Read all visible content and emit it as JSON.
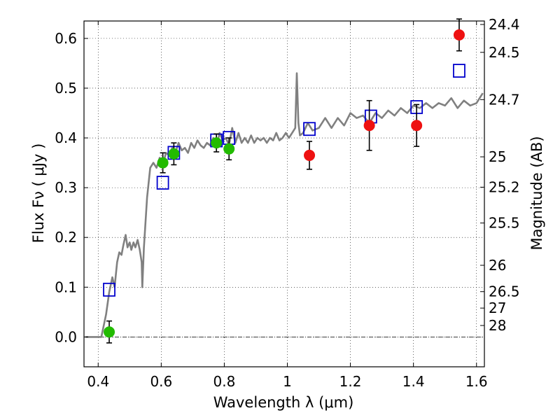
{
  "chart_data": {
    "type": "scatter",
    "xlabel": "Wavelength  λ (μm)",
    "ylabel": "Flux  Fν  ( μJy )",
    "y2label": "Magnitude (AB)",
    "xlim": [
      0.355,
      1.625
    ],
    "ylim": [
      -0.06,
      0.635
    ],
    "xticks": [
      0.4,
      0.6,
      0.8,
      1.0,
      1.2,
      1.4,
      1.6
    ],
    "xtick_labels": [
      "0.4",
      "0.6",
      "0.8",
      "1",
      "1.2",
      "1.4",
      "1.6"
    ],
    "yticks": [
      0.0,
      0.1,
      0.2,
      0.3,
      0.4,
      0.5,
      0.6
    ],
    "ytick_labels": [
      "0.0",
      "0.1",
      "0.2",
      "0.3",
      "0.4",
      "0.5",
      "0.6"
    ],
    "y2ticks": [
      {
        "label": "24.4",
        "flux": 0.628
      },
      {
        "label": "24.5",
        "flux": 0.572
      },
      {
        "label": "24.7",
        "flux": 0.477
      },
      {
        "label": "25",
        "flux": 0.362
      },
      {
        "label": "25.2",
        "flux": 0.301
      },
      {
        "label": "25.5",
        "flux": 0.229
      },
      {
        "label": "26",
        "flux": 0.144
      },
      {
        "label": "26.5",
        "flux": 0.091
      },
      {
        "label": "27",
        "flux": 0.058
      },
      {
        "label": "28",
        "flux": 0.023
      }
    ],
    "grid": true,
    "zero_line": true,
    "series": [
      {
        "marker": "line",
        "color": "#808080",
        "x": [
          0.36,
          0.41,
          0.425,
          0.435,
          0.445,
          0.452,
          0.46,
          0.467,
          0.474,
          0.48,
          0.487,
          0.493,
          0.5,
          0.505,
          0.512,
          0.518,
          0.525,
          0.532,
          0.538,
          0.54,
          0.545,
          0.555,
          0.565,
          0.575,
          0.585,
          0.595,
          0.605,
          0.615,
          0.625,
          0.635,
          0.645,
          0.655,
          0.665,
          0.675,
          0.685,
          0.695,
          0.705,
          0.715,
          0.725,
          0.735,
          0.745,
          0.755,
          0.765,
          0.775,
          0.785,
          0.795,
          0.805,
          0.815,
          0.825,
          0.835,
          0.845,
          0.855,
          0.865,
          0.875,
          0.885,
          0.895,
          0.905,
          0.915,
          0.925,
          0.935,
          0.945,
          0.955,
          0.965,
          0.975,
          0.985,
          0.995,
          1.005,
          1.015,
          1.025,
          1.03,
          1.035,
          1.04,
          1.05,
          1.065,
          1.08,
          1.1,
          1.12,
          1.14,
          1.16,
          1.18,
          1.2,
          1.22,
          1.24,
          1.26,
          1.28,
          1.3,
          1.32,
          1.34,
          1.36,
          1.38,
          1.4,
          1.42,
          1.44,
          1.46,
          1.48,
          1.5,
          1.52,
          1.54,
          1.56,
          1.58,
          1.6,
          1.62
        ],
        "y": [
          0.0,
          0.0,
          0.045,
          0.09,
          0.12,
          0.1,
          0.15,
          0.17,
          0.165,
          0.185,
          0.205,
          0.18,
          0.19,
          0.175,
          0.19,
          0.18,
          0.195,
          0.175,
          0.15,
          0.1,
          0.18,
          0.28,
          0.34,
          0.35,
          0.34,
          0.36,
          0.345,
          0.37,
          0.365,
          0.38,
          0.37,
          0.39,
          0.375,
          0.38,
          0.37,
          0.39,
          0.38,
          0.395,
          0.385,
          0.38,
          0.39,
          0.385,
          0.4,
          0.38,
          0.41,
          0.395,
          0.4,
          0.385,
          0.42,
          0.39,
          0.41,
          0.39,
          0.4,
          0.39,
          0.405,
          0.39,
          0.4,
          0.395,
          0.4,
          0.39,
          0.4,
          0.395,
          0.41,
          0.395,
          0.4,
          0.41,
          0.4,
          0.41,
          0.42,
          0.53,
          0.43,
          0.405,
          0.41,
          0.43,
          0.415,
          0.42,
          0.44,
          0.42,
          0.44,
          0.425,
          0.45,
          0.44,
          0.445,
          0.43,
          0.45,
          0.44,
          0.455,
          0.445,
          0.46,
          0.45,
          0.465,
          0.46,
          0.47,
          0.46,
          0.47,
          0.465,
          0.48,
          0.46,
          0.475,
          0.465,
          0.47,
          0.49
        ]
      },
      {
        "marker": "square",
        "color": "#0000cc",
        "x": [
          0.435,
          0.605,
          0.64,
          0.775,
          0.815,
          1.07,
          1.265,
          1.41,
          1.545
        ],
        "y": [
          0.095,
          0.31,
          0.37,
          0.395,
          0.4,
          0.418,
          0.443,
          0.462,
          0.535
        ]
      },
      {
        "marker": "circle",
        "color": "#22bb00",
        "x": [
          0.435,
          0.605,
          0.64,
          0.775,
          0.815
        ],
        "y": [
          0.01,
          0.35,
          0.368,
          0.39,
          0.378
        ],
        "err": [
          0.022,
          0.02,
          0.022,
          0.018,
          0.022
        ]
      },
      {
        "marker": "circle",
        "color": "#ee1111",
        "x": [
          1.07,
          1.26,
          1.41,
          1.545
        ],
        "y": [
          0.365,
          0.425,
          0.425,
          0.607
        ],
        "err": [
          0.028,
          0.05,
          0.042,
          0.032
        ]
      }
    ]
  }
}
